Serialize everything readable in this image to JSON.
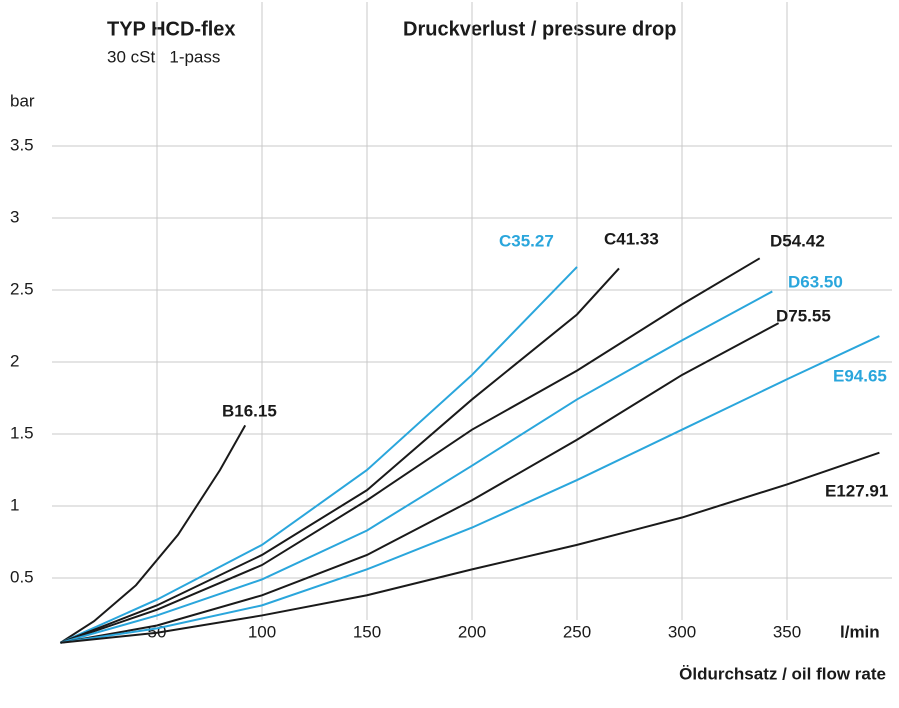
{
  "chart_data": {
    "type": "line",
    "title": "TYP HCD-flex",
    "subtitle": "30 cSt   1-pass",
    "title_right": "Druckverlust / pressure drop",
    "y_unit": "bar",
    "x_unit": "l/min",
    "xlabel": "Öldurchsatz / oil flow rate",
    "xlim": [
      0,
      400
    ],
    "xticks": [
      50,
      100,
      150,
      200,
      250,
      300,
      350
    ],
    "ylim": [
      0,
      4.5
    ],
    "yticks": [
      0.5,
      1.0,
      1.5,
      2.0,
      2.5,
      3.0,
      3.5
    ],
    "grid": true,
    "series": [
      {
        "name": "B16.15",
        "color": "#1a1a1a",
        "x": [
          4,
          20,
          40,
          60,
          80,
          92
        ],
        "values": [
          0.05,
          0.2,
          0.45,
          0.8,
          1.25,
          1.56
        ]
      },
      {
        "name": "C35.27",
        "color": "#2aa6dc",
        "x": [
          4,
          50,
          100,
          150,
          200,
          250
        ],
        "values": [
          0.05,
          0.35,
          0.73,
          1.25,
          1.91,
          2.66
        ]
      },
      {
        "name": "C41.33",
        "color": "#1a1a1a",
        "x": [
          4,
          50,
          100,
          150,
          200,
          250,
          270
        ],
        "values": [
          0.05,
          0.31,
          0.66,
          1.11,
          1.74,
          2.33,
          2.65
        ]
      },
      {
        "name": "D54.42",
        "color": "#1a1a1a",
        "x": [
          4,
          50,
          100,
          150,
          200,
          250,
          300,
          337
        ],
        "values": [
          0.05,
          0.28,
          0.59,
          1.04,
          1.53,
          1.94,
          2.4,
          2.72
        ]
      },
      {
        "name": "D63.50",
        "color": "#2aa6dc",
        "x": [
          4,
          50,
          100,
          150,
          200,
          250,
          300,
          343
        ],
        "values": [
          0.05,
          0.24,
          0.49,
          0.83,
          1.28,
          1.74,
          2.15,
          2.49
        ]
      },
      {
        "name": "D75.55",
        "color": "#1a1a1a",
        "x": [
          4,
          50,
          100,
          150,
          200,
          250,
          300,
          346
        ],
        "values": [
          0.05,
          0.17,
          0.38,
          0.66,
          1.04,
          1.46,
          1.91,
          2.27
        ]
      },
      {
        "name": "E94.65",
        "color": "#2aa6dc",
        "x": [
          4,
          50,
          100,
          150,
          200,
          250,
          300,
          350,
          394
        ],
        "values": [
          0.05,
          0.15,
          0.31,
          0.56,
          0.85,
          1.18,
          1.53,
          1.88,
          2.18
        ]
      },
      {
        "name": "E127.91",
        "color": "#1a1a1a",
        "x": [
          4,
          50,
          100,
          150,
          200,
          250,
          300,
          350,
          394
        ],
        "values": [
          0.05,
          0.12,
          0.24,
          0.38,
          0.56,
          0.73,
          0.92,
          1.15,
          1.37
        ]
      }
    ]
  }
}
